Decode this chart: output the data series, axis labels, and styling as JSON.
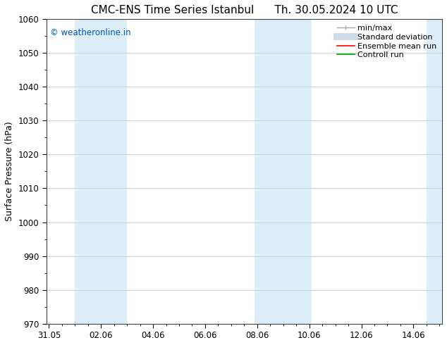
{
  "title_left": "CMC-ENS Time Series Istanbul",
  "title_right": "Th. 30.05.2024 10 UTC",
  "ylabel": "Surface Pressure (hPa)",
  "ylim": [
    970,
    1060
  ],
  "yticks": [
    970,
    980,
    990,
    1000,
    1010,
    1020,
    1030,
    1040,
    1050,
    1060
  ],
  "x_tick_labels": [
    "31.05",
    "02.06",
    "04.06",
    "06.06",
    "08.06",
    "10.06",
    "12.06",
    "14.06"
  ],
  "x_tick_positions": [
    0,
    2,
    4,
    6,
    8,
    10,
    12,
    14
  ],
  "xlim": [
    -0.1,
    15.1
  ],
  "watermark": "© weatheronline.in",
  "watermark_color": "#0055cc",
  "background_color": "#ffffff",
  "shaded_regions": [
    {
      "x_start": 1.0,
      "x_end": 1.5,
      "color": "#ddeef8"
    },
    {
      "x_start": 1.5,
      "x_end": 3.0,
      "color": "#ddeef8"
    },
    {
      "x_start": 7.9,
      "x_end": 8.5,
      "color": "#ddeef8"
    },
    {
      "x_start": 8.5,
      "x_end": 10.1,
      "color": "#ddeef8"
    },
    {
      "x_start": 14.5,
      "x_end": 15.1,
      "color": "#ddeef8"
    }
  ],
  "legend_labels": [
    "min/max",
    "Standard deviation",
    "Ensemble mean run",
    "Controll run"
  ],
  "legend_colors": [
    "#aaaaaa",
    "#ccdde8",
    "#ff0000",
    "#009900"
  ],
  "grid_color": "#cccccc",
  "title_fontsize": 11,
  "axis_label_fontsize": 9,
  "tick_fontsize": 8.5,
  "legend_fontsize": 8
}
